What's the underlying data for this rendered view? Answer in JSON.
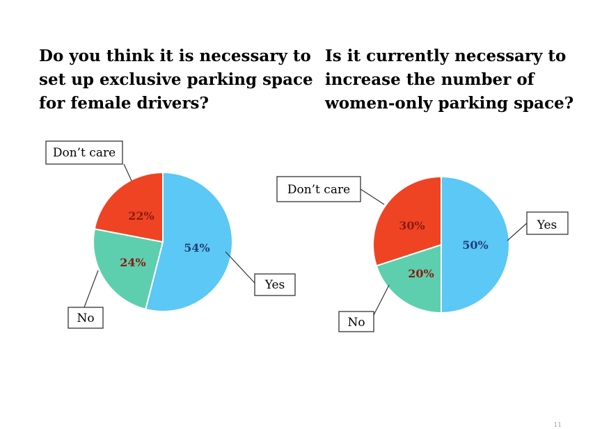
{
  "chart_data": [
    {
      "type": "pie",
      "title_lines": [
        "Do you think it is necessary to",
        "set up exclusive parking space",
        "for female drivers?"
      ],
      "slices": [
        {
          "label": "Yes",
          "value": 54,
          "value_label": "54%",
          "color": "#5BC8F5"
        },
        {
          "label": "No",
          "value": 24,
          "value_label": "24%",
          "color": "#5ECFAE"
        },
        {
          "label": "Don’t care",
          "value": 22,
          "value_label": "22%",
          "color": "#EE4424"
        }
      ]
    },
    {
      "type": "pie",
      "title_lines": [
        "Is it currently necessary to",
        "increase the number of",
        "women-only parking space?"
      ],
      "slices": [
        {
          "label": "Yes",
          "value": 50,
          "value_label": "50%",
          "color": "#5BC8F5"
        },
        {
          "label": "No",
          "value": 20,
          "value_label": "20%",
          "color": "#5ECFAE"
        },
        {
          "label": "Don’t care",
          "value": 30,
          "value_label": "30%",
          "color": "#EE4424"
        }
      ]
    }
  ],
  "slide_number": "11"
}
